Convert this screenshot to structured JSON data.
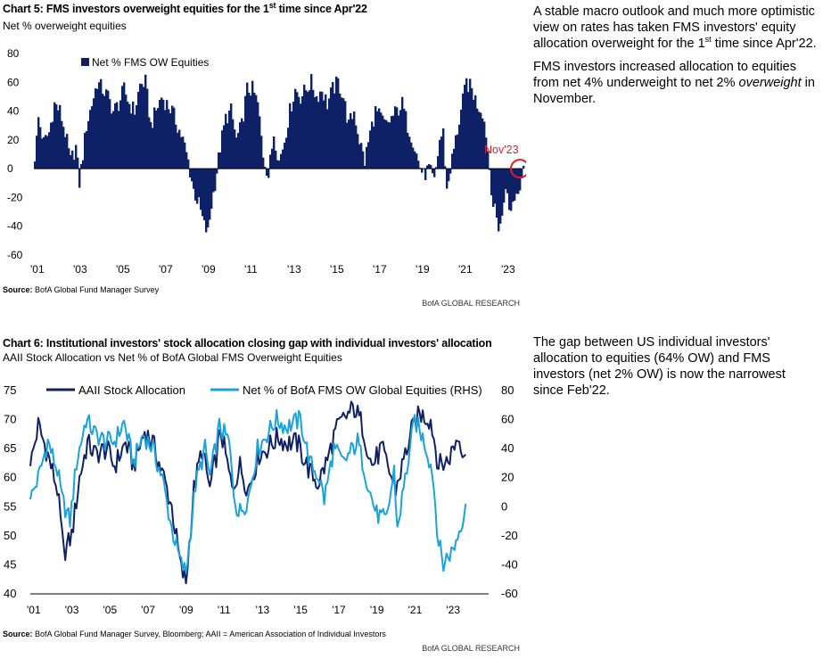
{
  "chart5": {
    "title": "Chart 5: FMS investors overweight equities for the 1st time since Apr'22",
    "subtitle": "Net % overweight equities",
    "source_label": "Source:",
    "source_text": "BofA Global Fund Manager Survey",
    "footer": "BofA GLOBAL RESEARCH",
    "annotation": "Nov'23",
    "colors": {
      "bar": "#0f2166",
      "highlight": "#e31b23"
    }
  },
  "chart6": {
    "title": "Chart 6: Institutional investors' stock allocation closing gap with individual investors' allocation",
    "subtitle": "AAII Stock Allocation vs Net % of BofA Global FMS Overweight Equities",
    "source_label": "Source:",
    "source_text": "BofA Global Fund Manager Survey, Bloomberg; AAII = American Association of Individual Investors",
    "footer": "BofA GLOBAL RESEARCH",
    "colors": {
      "aaii": "#0f2166",
      "fms": "#19a2dc"
    }
  },
  "commentary": {
    "p1": "A stable macro outlook and much more optimistic view on rates has taken FMS investors' equity allocation overweight for the 1st time since Apr'22.",
    "p2a": "FMS investors increased allocation to equities from net 4% underweight to net 2% ",
    "p2b": "overweight",
    "p2c": " in November.",
    "p3": "The gap between US individual investors' allocation to equities (64% OW) and FMS investors (net 2% OW) is now the narrowest since Feb'22."
  },
  "chart_data": [
    {
      "type": "bar",
      "legend": [
        "Net % FMS OW Equities"
      ],
      "legend_position": "top-left",
      "ylim": [
        -60,
        80
      ],
      "yticks": [
        "80",
        "60",
        "40",
        "20",
        "0",
        "-20",
        "-40",
        "-60"
      ],
      "xticks": [
        "'01",
        "'03",
        "'05",
        "'07",
        "'09",
        "'11",
        "'13",
        "'15",
        "'17",
        "'19",
        "'21",
        "'23"
      ],
      "x_range": [
        "2001-01",
        "2023-11"
      ],
      "anchors": [
        [
          "2001-01",
          5
        ],
        [
          "2001-03",
          35
        ],
        [
          "2001-06",
          18
        ],
        [
          "2001-09",
          25
        ],
        [
          "2001-12",
          45
        ],
        [
          "2002-03",
          40
        ],
        [
          "2002-06",
          25
        ],
        [
          "2002-09",
          5
        ],
        [
          "2002-12",
          15
        ],
        [
          "2003-02",
          -10
        ],
        [
          "2003-04",
          10
        ],
        [
          "2003-06",
          30
        ],
        [
          "2003-09",
          45
        ],
        [
          "2003-12",
          60
        ],
        [
          "2004-03",
          55
        ],
        [
          "2004-06",
          50
        ],
        [
          "2004-09",
          40
        ],
        [
          "2004-12",
          45
        ],
        [
          "2005-03",
          55
        ],
        [
          "2005-06",
          45
        ],
        [
          "2005-09",
          40
        ],
        [
          "2005-12",
          58
        ],
        [
          "2006-03",
          60
        ],
        [
          "2006-06",
          30
        ],
        [
          "2006-09",
          40
        ],
        [
          "2006-12",
          50
        ],
        [
          "2007-03",
          45
        ],
        [
          "2007-06",
          40
        ],
        [
          "2007-09",
          30
        ],
        [
          "2007-12",
          20
        ],
        [
          "2008-03",
          5
        ],
        [
          "2008-06",
          -15
        ],
        [
          "2008-09",
          -25
        ],
        [
          "2008-12",
          -40
        ],
        [
          "2009-02",
          -45
        ],
        [
          "2009-04",
          -25
        ],
        [
          "2009-06",
          -10
        ],
        [
          "2009-09",
          15
        ],
        [
          "2009-12",
          35
        ],
        [
          "2010-03",
          40
        ],
        [
          "2010-06",
          20
        ],
        [
          "2010-09",
          30
        ],
        [
          "2010-12",
          55
        ],
        [
          "2011-03",
          55
        ],
        [
          "2011-06",
          45
        ],
        [
          "2011-09",
          10
        ],
        [
          "2011-12",
          -5
        ],
        [
          "2012-03",
          25
        ],
        [
          "2012-06",
          5
        ],
        [
          "2012-09",
          20
        ],
        [
          "2012-12",
          40
        ],
        [
          "2013-03",
          55
        ],
        [
          "2013-06",
          50
        ],
        [
          "2013-09",
          55
        ],
        [
          "2013-12",
          60
        ],
        [
          "2014-03",
          50
        ],
        [
          "2014-06",
          55
        ],
        [
          "2014-09",
          45
        ],
        [
          "2014-12",
          55
        ],
        [
          "2015-03",
          60
        ],
        [
          "2015-06",
          50
        ],
        [
          "2015-09",
          30
        ],
        [
          "2015-12",
          40
        ],
        [
          "2016-03",
          20
        ],
        [
          "2016-06",
          5
        ],
        [
          "2016-09",
          25
        ],
        [
          "2016-12",
          40
        ],
        [
          "2017-03",
          35
        ],
        [
          "2017-06",
          30
        ],
        [
          "2017-09",
          35
        ],
        [
          "2017-12",
          40
        ],
        [
          "2018-03",
          45
        ],
        [
          "2018-06",
          30
        ],
        [
          "2018-09",
          20
        ],
        [
          "2018-12",
          5
        ],
        [
          "2019-03",
          -5
        ],
        [
          "2019-06",
          0
        ],
        [
          "2019-09",
          -10
        ],
        [
          "2019-12",
          20
        ],
        [
          "2020-02",
          25
        ],
        [
          "2020-04",
          -15
        ],
        [
          "2020-06",
          0
        ],
        [
          "2020-09",
          20
        ],
        [
          "2020-12",
          40
        ],
        [
          "2021-03",
          60
        ],
        [
          "2021-06",
          55
        ],
        [
          "2021-09",
          45
        ],
        [
          "2021-12",
          40
        ],
        [
          "2022-02",
          25
        ],
        [
          "2022-04",
          0
        ],
        [
          "2022-06",
          -25
        ],
        [
          "2022-09",
          -40
        ],
        [
          "2022-11",
          -35
        ],
        [
          "2023-01",
          -10
        ],
        [
          "2023-03",
          -30
        ],
        [
          "2023-06",
          -20
        ],
        [
          "2023-09",
          -10
        ],
        [
          "2023-10",
          -4
        ],
        [
          "2023-11",
          2
        ]
      ]
    },
    {
      "type": "line",
      "xticks": [
        "'01",
        "'03",
        "'05",
        "'07",
        "'09",
        "'11",
        "'13",
        "'15",
        "'17",
        "'19",
        "'21",
        "'23"
      ],
      "x_range": [
        "2001-01",
        "2023-11"
      ],
      "y_left": {
        "ylim": [
          40,
          75
        ],
        "ticks": [
          "75",
          "70",
          "65",
          "60",
          "55",
          "50",
          "45",
          "40"
        ]
      },
      "y_right": {
        "ylim": [
          -60,
          80
        ],
        "ticks": [
          "80",
          "60",
          "40",
          "20",
          "0",
          "-20",
          "-40",
          "-60"
        ]
      },
      "legend_position": "top",
      "series": [
        {
          "name": "AAII Stock Allocation",
          "axis": "left",
          "points": [
            [
              "2001-01",
              62
            ],
            [
              "2001-06",
              69
            ],
            [
              "2001-12",
              64
            ],
            [
              "2002-06",
              58
            ],
            [
              "2002-10",
              47
            ],
            [
              "2003-03",
              50
            ],
            [
              "2003-08",
              60
            ],
            [
              "2004-01",
              66
            ],
            [
              "2004-06",
              64
            ],
            [
              "2005-01",
              65
            ],
            [
              "2005-06",
              62
            ],
            [
              "2006-01",
              66
            ],
            [
              "2006-06",
              62
            ],
            [
              "2007-01",
              68
            ],
            [
              "2007-06",
              66
            ],
            [
              "2008-01",
              60
            ],
            [
              "2008-06",
              55
            ],
            [
              "2008-12",
              44
            ],
            [
              "2009-03",
              42
            ],
            [
              "2009-08",
              58
            ],
            [
              "2010-01",
              65
            ],
            [
              "2010-06",
              58
            ],
            [
              "2011-01",
              68
            ],
            [
              "2011-08",
              58
            ],
            [
              "2012-01",
              62
            ],
            [
              "2012-06",
              58
            ],
            [
              "2013-01",
              64
            ],
            [
              "2013-06",
              65
            ],
            [
              "2014-01",
              67
            ],
            [
              "2014-06",
              66
            ],
            [
              "2015-01",
              66
            ],
            [
              "2015-09",
              61
            ],
            [
              "2016-02",
              59
            ],
            [
              "2016-08",
              63
            ],
            [
              "2017-01",
              68
            ],
            [
              "2017-06",
              70
            ],
            [
              "2018-01",
              72
            ],
            [
              "2018-06",
              69
            ],
            [
              "2018-12",
              62
            ],
            [
              "2019-06",
              65
            ],
            [
              "2020-03",
              58
            ],
            [
              "2020-08",
              63
            ],
            [
              "2021-01",
              68
            ],
            [
              "2021-06",
              71
            ],
            [
              "2022-01",
              70
            ],
            [
              "2022-06",
              62
            ],
            [
              "2022-12",
              63
            ],
            [
              "2023-06",
              67
            ],
            [
              "2023-11",
              64
            ]
          ]
        },
        {
          "name": "Net % of BofA FMS OW Global Equities (RHS)",
          "axis": "right",
          "points": [
            [
              "2001-01",
              5
            ],
            [
              "2001-06",
              20
            ],
            [
              "2001-12",
              45
            ],
            [
              "2002-06",
              25
            ],
            [
              "2002-09",
              5
            ],
            [
              "2003-02",
              -10
            ],
            [
              "2003-06",
              30
            ],
            [
              "2003-12",
              60
            ],
            [
              "2004-06",
              50
            ],
            [
              "2004-12",
              45
            ],
            [
              "2005-06",
              45
            ],
            [
              "2005-12",
              58
            ],
            [
              "2006-06",
              30
            ],
            [
              "2006-12",
              50
            ],
            [
              "2007-06",
              40
            ],
            [
              "2007-12",
              20
            ],
            [
              "2008-06",
              -15
            ],
            [
              "2008-12",
              -40
            ],
            [
              "2009-03",
              -45
            ],
            [
              "2009-09",
              15
            ],
            [
              "2010-03",
              40
            ],
            [
              "2010-06",
              20
            ],
            [
              "2010-12",
              55
            ],
            [
              "2011-06",
              45
            ],
            [
              "2011-09",
              10
            ],
            [
              "2011-12",
              -5
            ],
            [
              "2012-06",
              5
            ],
            [
              "2012-12",
              40
            ],
            [
              "2013-06",
              50
            ],
            [
              "2013-12",
              60
            ],
            [
              "2014-06",
              55
            ],
            [
              "2015-03",
              60
            ],
            [
              "2015-09",
              30
            ],
            [
              "2016-03",
              20
            ],
            [
              "2016-06",
              5
            ],
            [
              "2016-12",
              40
            ],
            [
              "2017-06",
              30
            ],
            [
              "2018-03",
              45
            ],
            [
              "2018-12",
              5
            ],
            [
              "2019-03",
              -5
            ],
            [
              "2019-09",
              -10
            ],
            [
              "2020-02",
              25
            ],
            [
              "2020-04",
              -15
            ],
            [
              "2020-12",
              40
            ],
            [
              "2021-03",
              60
            ],
            [
              "2021-09",
              45
            ],
            [
              "2022-02",
              25
            ],
            [
              "2022-06",
              -25
            ],
            [
              "2022-09",
              -40
            ],
            [
              "2022-11",
              -35
            ],
            [
              "2023-03",
              -30
            ],
            [
              "2023-06",
              -20
            ],
            [
              "2023-10",
              -4
            ],
            [
              "2023-11",
              2
            ]
          ]
        }
      ]
    }
  ]
}
